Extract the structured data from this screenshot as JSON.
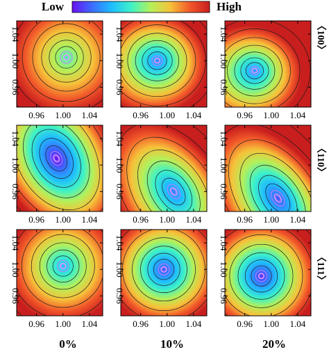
{
  "colorbar": {
    "low_label": "Low",
    "high_label": "High",
    "colors": [
      "#6a10f0",
      "#3b6cff",
      "#1fbcff",
      "#3ef2c8",
      "#b4f05a",
      "#f6c23a",
      "#f2582a",
      "#c81e1e"
    ]
  },
  "chart_data": {
    "type": "heatmap",
    "xlim": [
      0.93,
      1.06
    ],
    "ylim": [
      0.93,
      1.06
    ],
    "x_tick_labels": [
      "0.96",
      "1.00",
      "1.04"
    ],
    "y_tick_labels": [
      "0.96",
      "1.00",
      "1.04"
    ],
    "x_ticks": [
      0.96,
      1.0,
      1.04
    ],
    "y_ticks": [
      0.96,
      1.0,
      1.04
    ],
    "column_labels": [
      "0%",
      "10%",
      "20%"
    ],
    "row_labels": [
      "〈100〉",
      "〈110〉",
      "〈111〉"
    ],
    "panels": [
      {
        "row": 0,
        "col": 0,
        "min_x": 1.005,
        "min_y": 1.005,
        "ax": 16,
        "ay": 16,
        "rot": 0,
        "lo": 0.45,
        "hi": 1.0,
        "grad": [
          0,
          0,
          0
        ]
      },
      {
        "row": 0,
        "col": 1,
        "min_x": 0.985,
        "min_y": 1.0,
        "ax": 14,
        "ay": 13,
        "rot": 0,
        "lo": 0.1,
        "hi": 1.0,
        "grad": [
          6,
          4,
          0
        ]
      },
      {
        "row": 0,
        "col": 2,
        "min_x": 0.975,
        "min_y": 0.985,
        "ax": 13,
        "ay": 12,
        "rot": 0,
        "lo": 0.1,
        "hi": 1.0,
        "grad": [
          9,
          6,
          0
        ]
      },
      {
        "row": 1,
        "col": 0,
        "min_x": 0.99,
        "min_y": 1.01,
        "ax": 14,
        "ay": 20,
        "rot": -30,
        "lo": 0.0,
        "hi": 1.0,
        "grad": [
          0,
          0,
          0
        ]
      },
      {
        "row": 1,
        "col": 1,
        "min_x": 1.01,
        "min_y": 0.96,
        "ax": 14,
        "ay": 22,
        "rot": -35,
        "lo": 0.1,
        "hi": 1.0,
        "grad": [
          5,
          4,
          0
        ]
      },
      {
        "row": 1,
        "col": 2,
        "min_x": 1.01,
        "min_y": 0.95,
        "ax": 14,
        "ay": 24,
        "rot": -35,
        "lo": 0.0,
        "hi": 1.0,
        "grad": [
          7,
          6,
          0
        ]
      },
      {
        "row": 2,
        "col": 0,
        "min_x": 1.0,
        "min_y": 1.005,
        "ax": 15,
        "ay": 15,
        "rot": 0,
        "lo": 0.3,
        "hi": 1.0,
        "grad": [
          0,
          0,
          0
        ]
      },
      {
        "row": 2,
        "col": 1,
        "min_x": 0.995,
        "min_y": 1.0,
        "ax": 15,
        "ay": 15,
        "rot": 0,
        "lo": 0.1,
        "hi": 1.0,
        "grad": [
          0,
          0,
          0
        ]
      },
      {
        "row": 2,
        "col": 2,
        "min_x": 0.985,
        "min_y": 0.99,
        "ax": 15,
        "ay": 15,
        "rot": 0,
        "lo": 0.05,
        "hi": 1.0,
        "grad": [
          0,
          0,
          0
        ]
      }
    ]
  }
}
